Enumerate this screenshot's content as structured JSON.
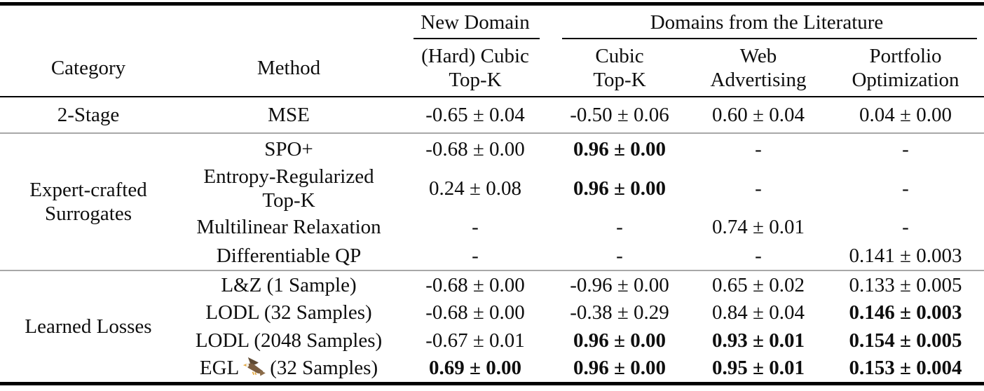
{
  "page": {
    "background": "#ffffff",
    "text_color": "#0e0e0e",
    "rule_color": "#000000",
    "section_rule_color": "#a8a8a8"
  },
  "table": {
    "header": {
      "category": "Category",
      "method": "Method",
      "groups": [
        {
          "label": "New Domain",
          "columns": [
            {
              "lines": [
                "(Hard) Cubic",
                "Top-K"
              ]
            }
          ]
        },
        {
          "label": "Domains from the Literature",
          "columns": [
            {
              "lines": [
                "Cubic",
                "Top-K"
              ]
            },
            {
              "lines": [
                "Web",
                "Advertising"
              ]
            },
            {
              "lines": [
                "Portfolio",
                "Optimization"
              ]
            }
          ]
        }
      ]
    },
    "sections": [
      {
        "category": "2-Stage",
        "rows": [
          {
            "method": "MSE",
            "values": [
              {
                "text": "-0.65 ± 0.04",
                "bold": false
              },
              {
                "text": "-0.50 ± 0.06",
                "bold": false
              },
              {
                "text": "0.60 ± 0.04",
                "bold": false
              },
              {
                "text": "0.04 ± 0.00",
                "bold": false
              }
            ]
          }
        ]
      },
      {
        "category": "Expert-crafted Surrogates",
        "rows": [
          {
            "method": "SPO+",
            "values": [
              {
                "text": "-0.68 ± 0.00",
                "bold": false
              },
              {
                "text": "0.96 ± 0.00",
                "bold": true
              },
              {
                "text": "-",
                "bold": false
              },
              {
                "text": "-",
                "bold": false
              }
            ]
          },
          {
            "method": "Entropy-Regularized Top-K",
            "values": [
              {
                "text": "0.24 ± 0.08",
                "bold": false
              },
              {
                "text": "0.96 ± 0.00",
                "bold": true
              },
              {
                "text": "-",
                "bold": false
              },
              {
                "text": "-",
                "bold": false
              }
            ]
          },
          {
            "method": "Multilinear Relaxation",
            "values": [
              {
                "text": "-",
                "bold": false
              },
              {
                "text": "-",
                "bold": false
              },
              {
                "text": "0.74 ± 0.01",
                "bold": false
              },
              {
                "text": "-",
                "bold": false
              }
            ]
          },
          {
            "method": "Differentiable QP",
            "values": [
              {
                "text": "-",
                "bold": false
              },
              {
                "text": "-",
                "bold": false
              },
              {
                "text": "-",
                "bold": false
              },
              {
                "text": "0.141 ± 0.003",
                "bold": false
              }
            ]
          }
        ]
      },
      {
        "category": "Learned Losses",
        "rows": [
          {
            "method": "L&Z (1 Sample)",
            "values": [
              {
                "text": "-0.68 ± 0.00",
                "bold": false
              },
              {
                "text": "-0.96 ± 0.00",
                "bold": false
              },
              {
                "text": "0.65 ± 0.02",
                "bold": false
              },
              {
                "text": "0.133 ± 0.005",
                "bold": false
              }
            ]
          },
          {
            "method": "LODL (32 Samples)",
            "values": [
              {
                "text": "-0.68 ± 0.00",
                "bold": false
              },
              {
                "text": "-0.38 ± 0.29",
                "bold": false
              },
              {
                "text": "0.84 ± 0.04",
                "bold": false
              },
              {
                "text": "0.146 ± 0.003",
                "bold": true
              }
            ]
          },
          {
            "method": "LODL (2048 Samples)",
            "values": [
              {
                "text": "-0.67 ± 0.01",
                "bold": false
              },
              {
                "text": "0.96 ± 0.00",
                "bold": true
              },
              {
                "text": "0.93 ± 0.01",
                "bold": true
              },
              {
                "text": "0.154 ± 0.005",
                "bold": true
              }
            ]
          },
          {
            "method": "EGL 🦅 (32 Samples)",
            "icon": "eagle-emoji",
            "values": [
              {
                "text": "0.69 ± 0.00",
                "bold": true
              },
              {
                "text": "0.96 ± 0.00",
                "bold": true
              },
              {
                "text": "0.95 ± 0.01",
                "bold": true
              },
              {
                "text": "0.153 ± 0.004",
                "bold": true
              }
            ]
          }
        ]
      }
    ]
  }
}
